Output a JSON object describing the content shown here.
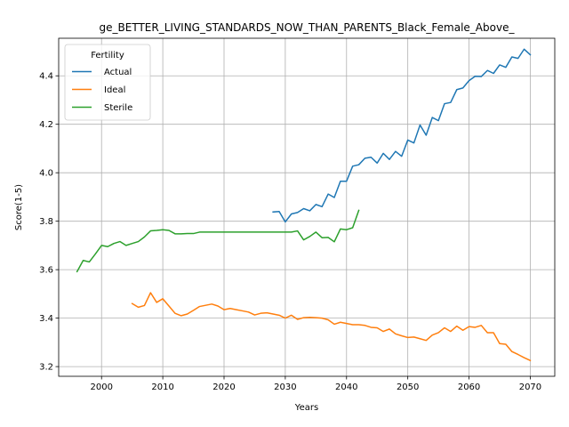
{
  "chart_data": {
    "type": "line",
    "title": "ge_BETTER_LIVING_STANDARDS_NOW_THAN_PARENTS_Black_Female_Above_",
    "xlabel": "Years",
    "ylabel": "Score(1-5)",
    "xlim": [
      1993,
      2074
    ],
    "ylim": [
      3.16,
      4.555
    ],
    "xticks": [
      2000,
      2010,
      2020,
      2030,
      2040,
      2050,
      2060,
      2070
    ],
    "yticks": [
      3.2,
      3.4,
      3.6,
      3.8,
      4.0,
      4.2,
      4.4
    ],
    "grid": true,
    "legend": {
      "title": "Fertility",
      "placement": "top-left"
    },
    "series": [
      {
        "name": "Actual",
        "color": "#1f77b4",
        "points": [
          [
            2028,
            3.838
          ],
          [
            2029,
            3.84
          ],
          [
            2030,
            3.797
          ],
          [
            2031,
            3.83
          ],
          [
            2032,
            3.836
          ],
          [
            2033,
            3.852
          ],
          [
            2034,
            3.843
          ],
          [
            2035,
            3.869
          ],
          [
            2036,
            3.86
          ],
          [
            2037,
            3.912
          ],
          [
            2038,
            3.898
          ],
          [
            2039,
            3.965
          ],
          [
            2040,
            3.965
          ],
          [
            2041,
            4.027
          ],
          [
            2042,
            4.033
          ],
          [
            2043,
            4.06
          ],
          [
            2044,
            4.064
          ],
          [
            2045,
            4.04
          ],
          [
            2046,
            4.08
          ],
          [
            2047,
            4.055
          ],
          [
            2048,
            4.088
          ],
          [
            2049,
            4.068
          ],
          [
            2050,
            4.135
          ],
          [
            2051,
            4.123
          ],
          [
            2052,
            4.197
          ],
          [
            2053,
            4.155
          ],
          [
            2054,
            4.228
          ],
          [
            2055,
            4.215
          ],
          [
            2056,
            4.285
          ],
          [
            2057,
            4.29
          ],
          [
            2058,
            4.343
          ],
          [
            2059,
            4.35
          ],
          [
            2060,
            4.38
          ],
          [
            2061,
            4.398
          ],
          [
            2062,
            4.397
          ],
          [
            2063,
            4.422
          ],
          [
            2064,
            4.41
          ],
          [
            2065,
            4.445
          ],
          [
            2066,
            4.435
          ],
          [
            2067,
            4.478
          ],
          [
            2068,
            4.472
          ],
          [
            2069,
            4.51
          ],
          [
            2070,
            4.487
          ]
        ]
      },
      {
        "name": "Ideal",
        "color": "#ff7f0e",
        "points": [
          [
            2005,
            3.46
          ],
          [
            2006,
            3.445
          ],
          [
            2007,
            3.452
          ],
          [
            2008,
            3.505
          ],
          [
            2009,
            3.465
          ],
          [
            2010,
            3.48
          ],
          [
            2011,
            3.45
          ],
          [
            2012,
            3.42
          ],
          [
            2013,
            3.41
          ],
          [
            2014,
            3.417
          ],
          [
            2015,
            3.432
          ],
          [
            2016,
            3.448
          ],
          [
            2017,
            3.453
          ],
          [
            2018,
            3.458
          ],
          [
            2019,
            3.45
          ],
          [
            2020,
            3.435
          ],
          [
            2021,
            3.44
          ],
          [
            2022,
            3.435
          ],
          [
            2023,
            3.43
          ],
          [
            2024,
            3.425
          ],
          [
            2025,
            3.413
          ],
          [
            2026,
            3.42
          ],
          [
            2027,
            3.422
          ],
          [
            2028,
            3.417
          ],
          [
            2029,
            3.412
          ],
          [
            2030,
            3.4
          ],
          [
            2031,
            3.412
          ],
          [
            2032,
            3.395
          ],
          [
            2033,
            3.402
          ],
          [
            2034,
            3.403
          ],
          [
            2035,
            3.402
          ],
          [
            2036,
            3.4
          ],
          [
            2037,
            3.393
          ],
          [
            2038,
            3.375
          ],
          [
            2039,
            3.383
          ],
          [
            2040,
            3.378
          ],
          [
            2041,
            3.373
          ],
          [
            2042,
            3.373
          ],
          [
            2043,
            3.37
          ],
          [
            2044,
            3.362
          ],
          [
            2045,
            3.36
          ],
          [
            2046,
            3.345
          ],
          [
            2047,
            3.355
          ],
          [
            2048,
            3.335
          ],
          [
            2049,
            3.327
          ],
          [
            2050,
            3.32
          ],
          [
            2051,
            3.322
          ],
          [
            2052,
            3.315
          ],
          [
            2053,
            3.308
          ],
          [
            2054,
            3.33
          ],
          [
            2055,
            3.34
          ],
          [
            2056,
            3.36
          ],
          [
            2057,
            3.345
          ],
          [
            2058,
            3.367
          ],
          [
            2059,
            3.35
          ],
          [
            2060,
            3.365
          ],
          [
            2061,
            3.362
          ],
          [
            2062,
            3.37
          ],
          [
            2063,
            3.34
          ],
          [
            2064,
            3.34
          ],
          [
            2065,
            3.295
          ],
          [
            2066,
            3.292
          ],
          [
            2067,
            3.262
          ],
          [
            2068,
            3.25
          ],
          [
            2069,
            3.237
          ],
          [
            2070,
            3.225
          ]
        ]
      },
      {
        "name": "Sterile",
        "color": "#2ca02c",
        "points": [
          [
            1996,
            3.592
          ],
          [
            1997,
            3.638
          ],
          [
            1998,
            3.632
          ],
          [
            1999,
            3.665
          ],
          [
            2000,
            3.7
          ],
          [
            2001,
            3.695
          ],
          [
            2002,
            3.708
          ],
          [
            2003,
            3.716
          ],
          [
            2004,
            3.7
          ],
          [
            2005,
            3.708
          ],
          [
            2006,
            3.716
          ],
          [
            2007,
            3.735
          ],
          [
            2008,
            3.76
          ],
          [
            2009,
            3.762
          ],
          [
            2010,
            3.765
          ],
          [
            2011,
            3.762
          ],
          [
            2012,
            3.748
          ],
          [
            2013,
            3.748
          ],
          [
            2014,
            3.749
          ],
          [
            2015,
            3.749
          ],
          [
            2016,
            3.755
          ],
          [
            2017,
            3.755
          ],
          [
            2018,
            3.755
          ],
          [
            2019,
            3.755
          ],
          [
            2020,
            3.755
          ],
          [
            2021,
            3.755
          ],
          [
            2022,
            3.755
          ],
          [
            2023,
            3.755
          ],
          [
            2024,
            3.755
          ],
          [
            2025,
            3.755
          ],
          [
            2026,
            3.755
          ],
          [
            2027,
            3.755
          ],
          [
            2028,
            3.755
          ],
          [
            2029,
            3.755
          ],
          [
            2030,
            3.755
          ],
          [
            2031,
            3.755
          ],
          [
            2032,
            3.76
          ],
          [
            2033,
            3.723
          ],
          [
            2034,
            3.737
          ],
          [
            2035,
            3.755
          ],
          [
            2036,
            3.732
          ],
          [
            2037,
            3.733
          ],
          [
            2038,
            3.715
          ],
          [
            2039,
            3.768
          ],
          [
            2040,
            3.765
          ],
          [
            2041,
            3.773
          ],
          [
            2042,
            3.845
          ]
        ]
      }
    ]
  }
}
